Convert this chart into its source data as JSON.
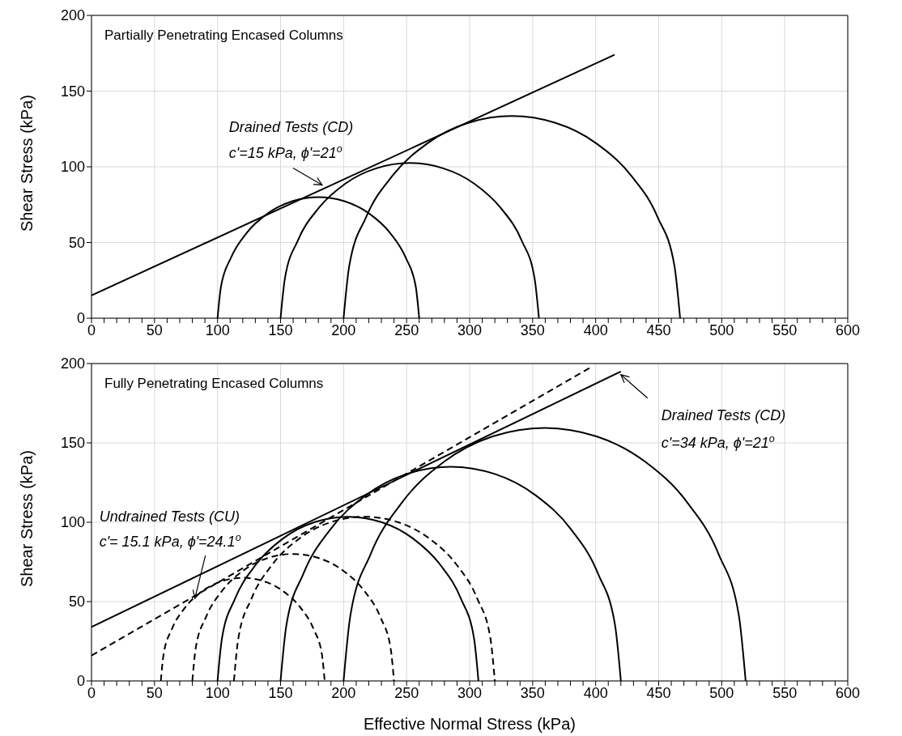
{
  "chart_data": [
    {
      "type": "line",
      "ylabel": "Shear Stress (kPa)",
      "xlim": [
        0,
        600
      ],
      "ylim": [
        0,
        200
      ],
      "xticks": [
        0,
        {
          "value": 10,
          "label": null
        },
        {
          "value": 20,
          "label": null
        },
        {
          "value": 30,
          "label": null
        },
        {
          "value": 40,
          "label": null
        },
        50,
        {
          "value": 60,
          "label": null
        },
        {
          "value": 70,
          "label": null
        },
        {
          "value": 80,
          "label": null
        },
        {
          "value": 90,
          "label": null
        },
        100,
        {
          "value": 110,
          "label": null
        },
        {
          "value": 120,
          "label": null
        },
        {
          "value": 130,
          "label": null
        },
        {
          "value": 140,
          "label": null
        },
        150,
        {
          "value": 160,
          "label": null
        },
        {
          "value": 170,
          "label": null
        },
        {
          "value": 180,
          "label": null
        },
        {
          "value": 190,
          "label": null
        },
        200,
        {
          "value": 210,
          "label": null
        },
        {
          "value": 220,
          "label": null
        },
        {
          "value": 230,
          "label": null
        },
        {
          "value": 240,
          "label": null
        },
        250,
        {
          "value": 260,
          "label": null
        },
        {
          "value": 270,
          "label": null
        },
        {
          "value": 280,
          "label": null
        },
        {
          "value": 290,
          "label": null
        },
        300,
        {
          "value": 310,
          "label": null
        },
        {
          "value": 320,
          "label": null
        },
        {
          "value": 330,
          "label": null
        },
        {
          "value": 340,
          "label": null
        },
        350,
        {
          "value": 360,
          "label": null
        },
        {
          "value": 370,
          "label": null
        },
        {
          "value": 380,
          "label": null
        },
        {
          "value": 390,
          "label": null
        },
        400,
        {
          "value": 410,
          "label": null
        },
        {
          "value": 420,
          "label": null
        },
        {
          "value": 430,
          "label": null
        },
        {
          "value": 440,
          "label": null
        },
        450,
        {
          "value": 460,
          "label": null
        },
        {
          "value": 470,
          "label": null
        },
        {
          "value": 480,
          "label": null
        },
        {
          "value": 490,
          "label": null
        },
        500,
        {
          "value": 510,
          "label": null
        },
        {
          "value": 520,
          "label": null
        },
        {
          "value": 530,
          "label": null
        },
        {
          "value": 540,
          "label": null
        },
        550,
        {
          "value": 560,
          "label": null
        },
        {
          "value": 570,
          "label": null
        },
        {
          "value": 580,
          "label": null
        },
        {
          "value": 590,
          "label": null
        },
        600
      ],
      "yticks": [
        0,
        50,
        100,
        150,
        200
      ],
      "grid": true,
      "marker": "none",
      "series": [
        {
          "type": "line",
          "color": "#000000",
          "line_style": "solid",
          "x": [
            0,
            415
          ],
          "values": [
            15,
            174
          ]
        },
        {
          "type": "line",
          "color": "#000000",
          "line_style": "solid",
          "x": [
            100,
            102.7,
            110.7,
            123.4,
            140,
            159.3,
            180,
            200.7,
            220,
            236.6,
            249.3,
            257.3,
            260
          ],
          "values": [
            0,
            20.7,
            40,
            56.6,
            69.3,
            77.3,
            80,
            77.3,
            69.3,
            56.6,
            40,
            20.7,
            0
          ]
        },
        {
          "type": "line",
          "color": "#000000",
          "line_style": "solid",
          "x": [
            150,
            153.5,
            163.7,
            180,
            201.2,
            226,
            252.5,
            279,
            303.8,
            325,
            341.3,
            351.5,
            355
          ],
          "values": [
            0,
            26.5,
            51.3,
            72.5,
            88.8,
            99,
            102.5,
            99,
            88.8,
            72.5,
            51.3,
            26.5,
            0
          ]
        },
        {
          "type": "line",
          "color": "#000000",
          "line_style": "solid",
          "x": [
            200,
            204.5,
            217.9,
            239.1,
            266.7,
            298.9,
            333.5,
            368.1,
            400.3,
            427.9,
            449.1,
            462.5,
            467
          ],
          "values": [
            0,
            34.6,
            66.8,
            94.4,
            115.6,
            129,
            133.5,
            129,
            115.6,
            94.4,
            66.8,
            34.6,
            0
          ]
        }
      ],
      "annotations": [
        "Partially Penetrating Encased Columns",
        {
          "text": "Drained Tests (CD)\nc'=15 kPa, ϕ'=21$^{o}$",
          "x": 183,
          "y": 88
        }
      ]
    },
    {
      "type": "line",
      "xlabel": "Effective Normal Stress (kPa)",
      "ylabel": "Shear Stress (kPa)",
      "xlim": [
        0,
        600
      ],
      "ylim": [
        0,
        200
      ],
      "xticks": [
        0,
        {
          "value": 10,
          "label": null
        },
        {
          "value": 20,
          "label": null
        },
        {
          "value": 30,
          "label": null
        },
        {
          "value": 40,
          "label": null
        },
        50,
        {
          "value": 60,
          "label": null
        },
        {
          "value": 70,
          "label": null
        },
        {
          "value": 80,
          "label": null
        },
        {
          "value": 90,
          "label": null
        },
        100,
        {
          "value": 110,
          "label": null
        },
        {
          "value": 120,
          "label": null
        },
        {
          "value": 130,
          "label": null
        },
        {
          "value": 140,
          "label": null
        },
        150,
        {
          "value": 160,
          "label": null
        },
        {
          "value": 170,
          "label": null
        },
        {
          "value": 180,
          "label": null
        },
        {
          "value": 190,
          "label": null
        },
        200,
        {
          "value": 210,
          "label": null
        },
        {
          "value": 220,
          "label": null
        },
        {
          "value": 230,
          "label": null
        },
        {
          "value": 240,
          "label": null
        },
        250,
        {
          "value": 260,
          "label": null
        },
        {
          "value": 270,
          "label": null
        },
        {
          "value": 280,
          "label": null
        },
        {
          "value": 290,
          "label": null
        },
        300,
        {
          "value": 310,
          "label": null
        },
        {
          "value": 320,
          "label": null
        },
        {
          "value": 330,
          "label": null
        },
        {
          "value": 340,
          "label": null
        },
        350,
        {
          "value": 360,
          "label": null
        },
        {
          "value": 370,
          "label": null
        },
        {
          "value": 380,
          "label": null
        },
        {
          "value": 390,
          "label": null
        },
        400,
        {
          "value": 410,
          "label": null
        },
        {
          "value": 420,
          "label": null
        },
        {
          "value": 430,
          "label": null
        },
        {
          "value": 440,
          "label": null
        },
        450,
        {
          "value": 460,
          "label": null
        },
        {
          "value": 470,
          "label": null
        },
        {
          "value": 480,
          "label": null
        },
        {
          "value": 490,
          "label": null
        },
        500,
        {
          "value": 510,
          "label": null
        },
        {
          "value": 520,
          "label": null
        },
        {
          "value": 530,
          "label": null
        },
        {
          "value": 540,
          "label": null
        },
        550,
        {
          "value": 560,
          "label": null
        },
        {
          "value": 570,
          "label": null
        },
        {
          "value": 580,
          "label": null
        },
        {
          "value": 590,
          "label": null
        },
        600
      ],
      "yticks": [
        0,
        50,
        100,
        150,
        200
      ],
      "grid": true,
      "marker": "none",
      "series": [
        {
          "type": "line",
          "color": "#000000",
          "line_style": "solid",
          "x": [
            0,
            420
          ],
          "values": [
            34,
            195
          ]
        },
        {
          "type": "line",
          "color": "#000000",
          "line_style": "dashed",
          "x": [
            0,
            397
          ],
          "values": [
            16,
            198
          ]
        },
        {
          "type": "line",
          "color": "#000000",
          "line_style": "solid",
          "x": [
            100,
            103.5,
            113.9,
            130.3,
            151.7,
            176.7,
            203.5,
            230.3,
            255.3,
            276.7,
            293.1,
            303.5,
            307
          ],
          "values": [
            0,
            26.8,
            51.8,
            73.2,
            89.6,
            100,
            103.5,
            100,
            89.6,
            73.2,
            51.8,
            26.8,
            0
          ]
        },
        {
          "type": "line",
          "color": "#000000",
          "line_style": "solid",
          "x": [
            150,
            154.6,
            168.1,
            189.5,
            217.5,
            250,
            285,
            320,
            352.5,
            380.5,
            401.9,
            415.4,
            420
          ],
          "values": [
            0,
            35,
            67.5,
            95.5,
            116.9,
            130.4,
            135,
            130.4,
            116.9,
            95.5,
            67.5,
            35,
            0
          ]
        },
        {
          "type": "line",
          "color": "#000000",
          "line_style": "solid",
          "x": [
            200,
            205.4,
            221.4,
            246.7,
            279.7,
            318.2,
            359.5,
            400.8,
            439.3,
            472.3,
            497.6,
            513.6,
            519
          ],
          "values": [
            0,
            41.3,
            79.8,
            112.8,
            138.1,
            154.1,
            159.5,
            154.1,
            138.1,
            112.8,
            79.8,
            41.3,
            0
          ]
        },
        {
          "type": "line",
          "color": "#000000",
          "line_style": "dashed",
          "x": [
            55,
            57.2,
            63.7,
            74,
            87.5,
            103.2,
            120,
            136.8,
            152.5,
            166,
            176.3,
            182.8,
            185
          ],
          "values": [
            0,
            16.8,
            32.5,
            46,
            56.3,
            62.8,
            65,
            62.8,
            56.3,
            46,
            32.5,
            16.8,
            0
          ]
        },
        {
          "type": "line",
          "color": "#000000",
          "line_style": "dashed",
          "x": [
            80,
            82.7,
            90.7,
            103.4,
            120,
            139.3,
            160,
            180.7,
            200,
            216.6,
            229.3,
            237.3,
            240
          ],
          "values": [
            0,
            20.7,
            40,
            56.6,
            69.3,
            77.3,
            80,
            77.3,
            69.3,
            56.6,
            40,
            20.7,
            0
          ]
        },
        {
          "type": "line",
          "color": "#000000",
          "line_style": "dashed",
          "x": [
            113,
            116.5,
            126.9,
            143.3,
            164.7,
            189.7,
            216.5,
            243.3,
            268.3,
            289.7,
            306.1,
            316.5,
            320
          ],
          "values": [
            0,
            26.8,
            51.8,
            73.2,
            89.6,
            100,
            103.5,
            100,
            89.6,
            73.2,
            51.8,
            26.8,
            0
          ]
        }
      ],
      "annotations": [
        "Fully Penetrating Encased Columns",
        {
          "text": "Drained Tests (CD)\nc'=34 kPa, ϕ'=21$^{o}$",
          "x": 420,
          "y": 193
        },
        {
          "text": "Undrained Tests (CU)\nc'= 15.1 kPa, ϕ'=24.1$^{o}$",
          "x": 82,
          "y": 52
        }
      ]
    }
  ]
}
